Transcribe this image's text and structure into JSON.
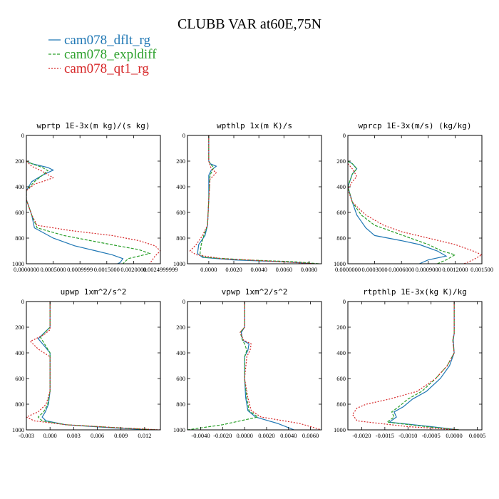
{
  "title": "CLUBB VAR at60E,75N",
  "legend": [
    {
      "label": "cam078_dflt_rg",
      "color": "#1f77b4",
      "dash": "solid"
    },
    {
      "label": "cam078_expldiff",
      "color": "#2ca02c",
      "dash": "dashed"
    },
    {
      "label": "cam078_qt1_rg",
      "color": "#d62728",
      "dash": "dotted"
    }
  ],
  "chart_data": [
    {
      "type": "line",
      "title": "wprtp  1E-3x(m kg)/(s kg)",
      "xlim": [
        0.0,
        0.0025
      ],
      "ylim": [
        1000,
        0
      ],
      "xticks": [
        "0.0000000",
        "0.0005000",
        "0.0009999",
        "0.0015000",
        "0.0020000",
        "0.0024999999"
      ],
      "xtick_values": [
        0.0,
        0.0005,
        0.001,
        0.0015,
        0.002,
        0.0025
      ],
      "yticks": [
        "0",
        "200",
        "400",
        "600",
        "800",
        "1000"
      ],
      "ytick_values": [
        0,
        200,
        400,
        600,
        800,
        1000
      ],
      "series": [
        {
          "name": "cam078_dflt_rg",
          "x": [
            0.0,
            0.0001,
            0.0004,
            0.0005,
            0.0003,
            0.0001,
            0.0,
            0.0,
            5e-05,
            0.0001,
            0.00015,
            0.0005,
            0.0009,
            0.0013,
            0.0016,
            0.0018,
            0.00175,
            0.0017
          ],
          "y": [
            200,
            220,
            250,
            270,
            310,
            360,
            430,
            500,
            560,
            620,
            720,
            800,
            860,
            900,
            930,
            960,
            990,
            1000
          ]
        },
        {
          "name": "cam078_expldiff",
          "x": [
            0.0,
            0.0001,
            0.0003,
            0.0004,
            0.0003,
            0.00015,
            0.0,
            0.0,
            5e-05,
            0.0001,
            0.0002,
            0.0007,
            0.0012,
            0.0017,
            0.0021,
            0.0023,
            0.0019,
            0.0018
          ],
          "y": [
            200,
            220,
            250,
            275,
            310,
            360,
            430,
            500,
            560,
            620,
            720,
            780,
            820,
            860,
            890,
            920,
            960,
            1000
          ]
        },
        {
          "name": "cam078_qt1_rg",
          "x": [
            0.0,
            0.0001,
            0.0003,
            0.0005,
            0.0003,
            0.00015,
            0.0,
            0.0,
            5e-05,
            0.0001,
            0.0002,
            0.0008,
            0.0016,
            0.0021,
            0.0024,
            0.0025,
            0.0024,
            0.0023
          ],
          "y": [
            200,
            240,
            280,
            330,
            360,
            380,
            430,
            500,
            560,
            620,
            700,
            740,
            780,
            820,
            860,
            900,
            940,
            1000
          ]
        }
      ]
    },
    {
      "type": "line",
      "title": "wpthlp  1x(m K)/s",
      "xlim": [
        -0.0017,
        0.009
      ],
      "ylim": [
        1000,
        0
      ],
      "xticks": [
        "0.0000",
        "0.0020",
        "0.0040",
        "0.0060",
        "0.0080"
      ],
      "xtick_values": [
        0.0,
        0.002,
        0.004,
        0.006,
        0.008
      ],
      "yticks": [
        "0",
        "200",
        "400",
        "600",
        "800",
        "1000"
      ],
      "ytick_values": [
        0,
        200,
        400,
        600,
        800,
        1000
      ],
      "series": [
        {
          "name": "cam078_dflt_rg",
          "x": [
            0.0,
            0.0,
            0.0001,
            0.0006,
            0.0002,
            0.0,
            0.0,
            -0.0001,
            -0.0003,
            -0.0008,
            -0.0009,
            -0.0005,
            0.002,
            0.006,
            0.0085
          ],
          "y": [
            0,
            200,
            220,
            240,
            270,
            310,
            500,
            700,
            780,
            850,
            920,
            950,
            970,
            985,
            1000
          ]
        },
        {
          "name": "cam078_expldiff",
          "x": [
            0.0,
            0.0,
            0.0002,
            0.0004,
            0.0003,
            0.0001,
            0.0,
            -0.0001,
            -0.0004,
            -0.0006,
            -0.0007,
            -0.0004,
            0.003,
            0.007,
            0.0088
          ],
          "y": [
            0,
            200,
            230,
            250,
            270,
            310,
            500,
            700,
            780,
            850,
            920,
            950,
            970,
            985,
            1000
          ]
        },
        {
          "name": "cam078_qt1_rg",
          "x": [
            0.0,
            0.0,
            0.0002,
            0.0006,
            0.0004,
            0.0001,
            0.0,
            -0.0001,
            -0.0005,
            -0.001,
            -0.0015,
            -0.001,
            0.001,
            0.005,
            0.0085
          ],
          "y": [
            0,
            200,
            260,
            290,
            310,
            340,
            500,
            700,
            780,
            850,
            900,
            930,
            960,
            980,
            1000
          ]
        }
      ]
    },
    {
      "type": "line",
      "title": "wprcp  1E-3x(m/s) (kg/kg)",
      "xlim": [
        0.0,
        0.0015
      ],
      "ylim": [
        1000,
        0
      ],
      "xticks": [
        "0.0000000",
        "0.0003000",
        "0.0006000",
        "0.0009000",
        "0.0012000",
        "0.001500"
      ],
      "xtick_values": [
        0.0,
        0.0003,
        0.0006,
        0.0009,
        0.0012,
        0.0015
      ],
      "yticks": [
        "0",
        "200",
        "400",
        "600",
        "800",
        "1000"
      ],
      "ytick_values": [
        0,
        200,
        400,
        600,
        800,
        1000
      ],
      "series": [
        {
          "name": "cam078_dflt_rg",
          "x": [
            0.0,
            5e-05,
            0.0001,
            5e-05,
            0.0,
            5e-05,
            0.0001,
            0.0002,
            0.0003,
            0.0006,
            0.0008,
            0.001,
            0.0011,
            0.0009,
            0.0008
          ],
          "y": [
            200,
            220,
            260,
            300,
            400,
            520,
            620,
            720,
            780,
            820,
            850,
            900,
            940,
            970,
            1000
          ]
        },
        {
          "name": "cam078_expldiff",
          "x": [
            0.0,
            5e-05,
            0.0001,
            5e-05,
            0.0,
            5e-05,
            0.00015,
            0.0003,
            0.0005,
            0.0007,
            0.0009,
            0.00105,
            0.0012,
            0.0011,
            0.001
          ],
          "y": [
            200,
            220,
            260,
            300,
            400,
            520,
            620,
            700,
            750,
            800,
            850,
            900,
            930,
            970,
            1000
          ]
        },
        {
          "name": "cam078_qt1_rg",
          "x": [
            0.0,
            5e-05,
            0.0001,
            5e-05,
            0.0,
            5e-05,
            0.0002,
            0.0004,
            0.0006,
            0.0009,
            0.0012,
            0.0014,
            0.0015,
            0.0014,
            0.0013
          ],
          "y": [
            220,
            260,
            320,
            360,
            420,
            520,
            620,
            700,
            750,
            800,
            850,
            900,
            930,
            970,
            1000
          ]
        }
      ]
    },
    {
      "type": "line",
      "title": "upwp  1xm^2/s^2",
      "xlim": [
        -0.003,
        0.014
      ],
      "ylim": [
        1000,
        0
      ],
      "xticks": [
        "-0.003",
        "0.000",
        "0.003",
        "0.006",
        "0.009",
        "0.012"
      ],
      "xtick_values": [
        -0.003,
        0.0,
        0.003,
        0.006,
        0.009,
        0.012
      ],
      "yticks": [
        "0",
        "200",
        "400",
        "600",
        "800",
        "1000"
      ],
      "ytick_values": [
        0,
        200,
        400,
        600,
        800,
        1000
      ],
      "series": [
        {
          "name": "cam078_dflt_rg",
          "x": [
            0.0,
            0.0,
            -0.0005,
            -0.0015,
            -0.0008,
            0.0,
            0.0,
            -0.0002,
            -0.0006,
            -0.001,
            -0.0005,
            0.002,
            0.008,
            0.013
          ],
          "y": [
            0,
            200,
            230,
            290,
            340,
            400,
            700,
            800,
            860,
            900,
            930,
            960,
            985,
            1000
          ]
        },
        {
          "name": "cam078_expldiff",
          "x": [
            0.0,
            0.0,
            -0.0005,
            -0.0012,
            -0.0005,
            0.0,
            0.0,
            -0.0003,
            -0.0008,
            -0.0015,
            -0.001,
            0.002,
            0.009,
            0.0135
          ],
          "y": [
            0,
            200,
            230,
            280,
            350,
            400,
            700,
            800,
            860,
            900,
            930,
            960,
            985,
            1000
          ]
        },
        {
          "name": "cam078_qt1_rg",
          "x": [
            0.0,
            0.0,
            -0.0008,
            -0.0025,
            -0.0015,
            0.0,
            0.0,
            -0.0005,
            -0.0015,
            -0.003,
            -0.002,
            0.002,
            0.009,
            0.014
          ],
          "y": [
            0,
            220,
            260,
            310,
            370,
            430,
            700,
            800,
            860,
            900,
            930,
            960,
            985,
            1000
          ]
        }
      ]
    },
    {
      "type": "line",
      "title": "vpwp  1xm^2/s^2",
      "xlim": [
        -0.0052,
        0.007
      ],
      "ylim": [
        1000,
        0
      ],
      "xticks": [
        "-0.0040",
        "-0.0020",
        "0.0000",
        "0.0020",
        "0.0040",
        "0.0060"
      ],
      "xtick_values": [
        -0.004,
        -0.002,
        0.0,
        0.002,
        0.004,
        0.006
      ],
      "yticks": [
        "0",
        "200",
        "400",
        "600",
        "800",
        "1000"
      ],
      "ytick_values": [
        0,
        200,
        400,
        600,
        800,
        1000
      ],
      "series": [
        {
          "name": "cam078_dflt_rg",
          "x": [
            0.0,
            0.0,
            -0.0003,
            -0.0002,
            0.0004,
            0.0003,
            0.0,
            0.0,
            0.0001,
            0.0003,
            0.001,
            0.003,
            0.0045
          ],
          "y": [
            0,
            200,
            240,
            300,
            330,
            380,
            430,
            600,
            750,
            850,
            900,
            950,
            1000
          ]
        },
        {
          "name": "cam078_expldiff",
          "x": [
            0.0,
            0.0,
            -0.0004,
            -0.0002,
            0.0,
            0.0002,
            0.0,
            0.0,
            0.0002,
            0.0004,
            0.0012,
            -0.002,
            -0.0052
          ],
          "y": [
            0,
            200,
            240,
            300,
            330,
            380,
            430,
            600,
            750,
            850,
            900,
            960,
            1000
          ]
        },
        {
          "name": "cam078_qt1_rg",
          "x": [
            0.0,
            0.0,
            -0.0004,
            -0.0001,
            0.0006,
            0.0005,
            0.0002,
            0.0,
            0.0003,
            0.0006,
            0.0015,
            0.005,
            0.007
          ],
          "y": [
            0,
            200,
            240,
            300,
            330,
            380,
            430,
            600,
            750,
            850,
            900,
            950,
            1000
          ]
        }
      ]
    },
    {
      "type": "line",
      "title": "rtpthlp  1E-3x(kg K)/kg",
      "xlim": [
        -0.0023,
        0.0006
      ],
      "ylim": [
        1000,
        0
      ],
      "xticks": [
        "-0.0020",
        "-0.0015",
        "-0.0010",
        "-0.0005",
        "0.0000",
        "0.0005"
      ],
      "xtick_values": [
        -0.002,
        -0.0015,
        -0.001,
        -0.0005,
        0.0,
        0.0005
      ],
      "yticks": [
        "0",
        "200",
        "400",
        "600",
        "800",
        "1000"
      ],
      "ytick_values": [
        0,
        200,
        400,
        600,
        800,
        1000
      ],
      "series": [
        {
          "name": "cam078_dflt_rg",
          "x": [
            0.0,
            0.0,
            -2e-05,
            0.0,
            -0.0001,
            -0.0003,
            -0.0006,
            -0.0009,
            -0.0011,
            -0.0013,
            -0.00125,
            -0.0014,
            -0.0005,
            0.0001
          ],
          "y": [
            0,
            250,
            300,
            400,
            500,
            600,
            700,
            760,
            820,
            860,
            900,
            940,
            975,
            1000
          ]
        },
        {
          "name": "cam078_expldiff",
          "x": [
            0.0,
            0.0,
            -3e-05,
            0.0,
            -0.00015,
            -0.0004,
            -0.0007,
            -0.001,
            -0.0012,
            -0.00135,
            -0.0013,
            -0.00145,
            -0.0006,
            0.0001
          ],
          "y": [
            0,
            250,
            300,
            400,
            500,
            600,
            700,
            760,
            820,
            860,
            900,
            940,
            975,
            1000
          ]
        },
        {
          "name": "cam078_qt1_rg",
          "x": [
            0.0,
            0.0,
            -3e-05,
            0.0,
            -0.00015,
            -0.0004,
            -0.0008,
            -0.0014,
            -0.0019,
            -0.0021,
            -0.0022,
            -0.0021,
            -0.001,
            0.0001
          ],
          "y": [
            0,
            250,
            300,
            400,
            500,
            600,
            700,
            760,
            800,
            830,
            880,
            930,
            975,
            1000
          ]
        }
      ]
    }
  ]
}
